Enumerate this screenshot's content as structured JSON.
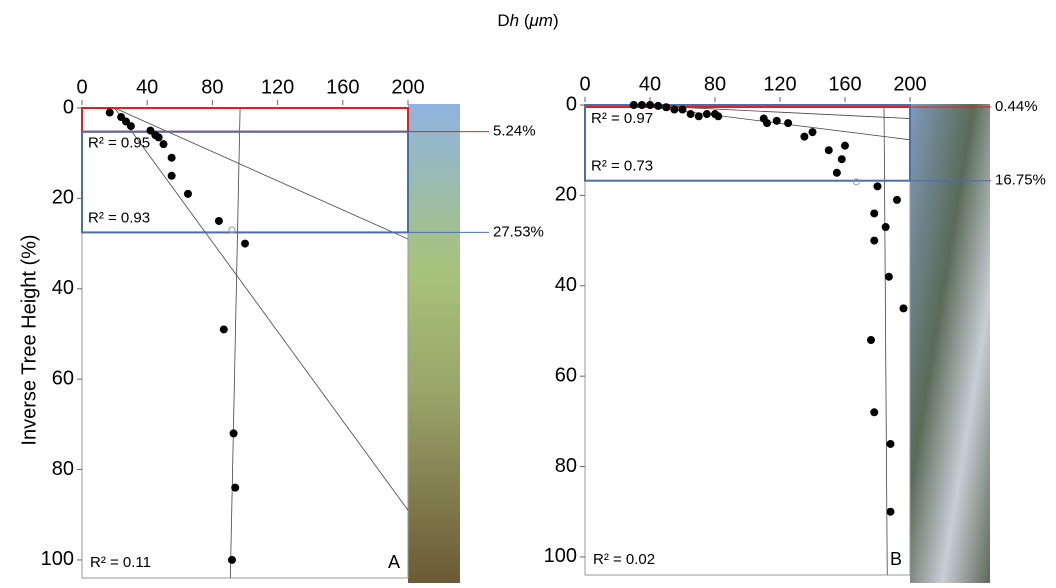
{
  "figure": {
    "title_parts": [
      {
        "text": "D",
        "italic": false
      },
      {
        "text": "h",
        "italic": true
      },
      {
        "text": " (",
        "italic": false
      },
      {
        "text": "μm",
        "italic": true
      },
      {
        "text": ")",
        "italic": false
      }
    ],
    "ylabel": "Inverse Tree Height (%)"
  },
  "chart_data": [
    {
      "type": "scatter",
      "panel_label": "A",
      "xlim": [
        0,
        200
      ],
      "xticks": [
        0,
        40,
        80,
        120,
        160,
        200
      ],
      "ylim": [
        0,
        104
      ],
      "yticks": [
        0,
        20,
        40,
        60,
        80,
        100
      ],
      "y_inverted": true,
      "points": {
        "color": "#000000",
        "x": [
          17,
          24,
          27,
          30,
          42,
          45,
          47,
          50,
          55,
          55,
          65,
          84,
          100,
          87,
          93,
          94,
          92
        ],
        "y": [
          1,
          2,
          3,
          4,
          5,
          6,
          6.5,
          8,
          11,
          15,
          19,
          25,
          30,
          49,
          72,
          84,
          100
        ]
      },
      "open_points": {
        "color": "#8a9bb0",
        "x": [
          92
        ],
        "y": [
          27
        ]
      },
      "fits": [
        {
          "x": [
            20,
            200
          ],
          "y": [
            0,
            29
          ]
        },
        {
          "x": [
            20,
            200
          ],
          "y": [
            0,
            89
          ]
        },
        {
          "x": [
            97,
            91
          ],
          "y": [
            0,
            104
          ]
        }
      ],
      "boxes": [
        {
          "from": 0,
          "to": 5.24,
          "color": "#e02020",
          "value_label": "5.24%",
          "r2": "R² = 0.95"
        },
        {
          "from": 5.24,
          "to": 27.53,
          "color": "#4a6fa5",
          "value_label": "27.53%",
          "r2": "R² = 0.93"
        }
      ],
      "overall_r2": "R² = 0.11"
    },
    {
      "type": "scatter",
      "panel_label": "B",
      "xlim": [
        0,
        200
      ],
      "xticks": [
        0,
        40,
        80,
        120,
        160,
        200
      ],
      "ylim": [
        0,
        104
      ],
      "yticks": [
        0,
        20,
        40,
        60,
        80,
        100
      ],
      "y_inverted": true,
      "points": {
        "color": "#000000",
        "x": [
          30,
          35,
          40,
          45,
          50,
          55,
          60,
          65,
          70,
          75,
          80,
          82,
          110,
          112,
          118,
          125,
          135,
          140,
          150,
          155,
          158,
          160,
          180,
          178,
          192,
          185,
          178,
          187,
          196,
          176,
          178,
          188,
          188
        ],
        "y": [
          0,
          0,
          0,
          0.2,
          0.5,
          1,
          1,
          2,
          2.5,
          2,
          2,
          2.5,
          3,
          4,
          3.5,
          4,
          7,
          6,
          10,
          15,
          12,
          9,
          18,
          24,
          21,
          27,
          30,
          38,
          45,
          52,
          68,
          75,
          90
        ]
      },
      "open_points": {
        "color": "#8a9bb0",
        "x": [
          167
        ],
        "y": [
          17
        ]
      },
      "fits": [
        {
          "x": [
            30,
            200
          ],
          "y": [
            0,
            3
          ]
        },
        {
          "x": [
            30,
            200
          ],
          "y": [
            0,
            7.7
          ]
        },
        {
          "x": [
            184,
            186
          ],
          "y": [
            0,
            104
          ]
        }
      ],
      "boxes": [
        {
          "from": 0,
          "to": 0.44,
          "color": "#e02020",
          "value_label": "0.44%",
          "r2": "R² = 0.97"
        },
        {
          "from": 0,
          "to": 16.75,
          "color": "#4a6fa5",
          "value_label": "16.75%",
          "r2": "R² = 0.73"
        }
      ],
      "overall_r2": "R² = 0.02"
    }
  ]
}
